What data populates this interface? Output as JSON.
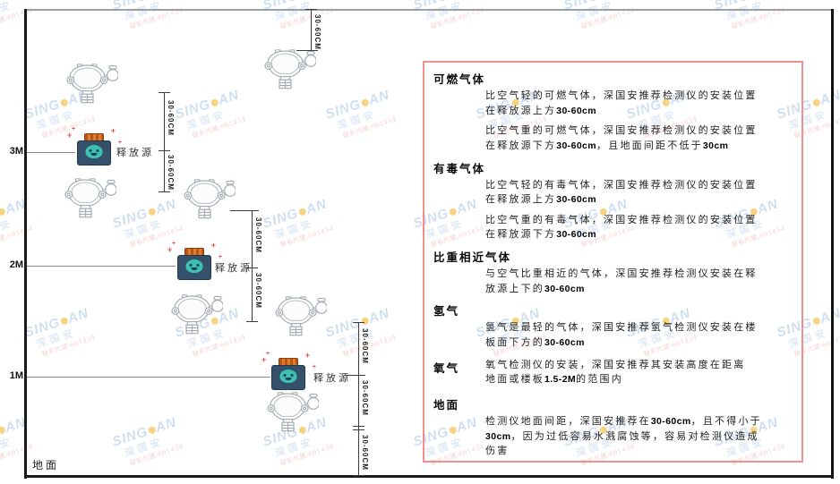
{
  "watermark": {
    "brand_left": "SING",
    "brand_right": "AN",
    "brand_cn": "深国安",
    "contact": "联系代理:661434"
  },
  "diagram": {
    "axis_labels": [
      "3M",
      "2M",
      "1M"
    ],
    "ground_label": "地面",
    "source_label": "释放源",
    "dim_label": "30-60CM"
  },
  "panel": {
    "sections": [
      {
        "title": "可燃气体",
        "inline": false,
        "paragraphs": [
          "比空气轻的可燃气体，深国安推荐检测仪的安装位置在释放源上方30-60cm",
          "比空气重的可燃气体，深国安推荐检测仪的安装位置在释放源下方30-60cm，且地面间距不低于30cm"
        ]
      },
      {
        "title": "有毒气体",
        "inline": false,
        "paragraphs": [
          "比空气轻的有毒气体，深国安推荐检测仪的安装位置在释放源上方30-60cm",
          "比空气重的有毒气体，深国安推荐检测仪的安装位置在释放源下方30-60cm"
        ]
      },
      {
        "title": "比重相近气体",
        "inline": false,
        "paragraphs": [
          "与空气比重相近的气体，深国安推荐检测仪安装在释放源上下的30-60cm"
        ]
      },
      {
        "title": "氢气",
        "inline": false,
        "paragraphs": [
          "氢气是最轻的气体，深国安推荐氢气检测仪安装在楼板面下方的30-60cm"
        ]
      },
      {
        "title": "氧气",
        "inline": true,
        "paragraphs": [
          "氧气检测仪的安装，深国安推荐其安装高度在距离地面或楼板1.5-2M的范围内"
        ]
      },
      {
        "title": "地面",
        "inline": false,
        "paragraphs": [
          "检测仪地面间距，深国安推荐在30-60cm，且不得小于30cm，因为过低容易水溅腐蚀等，容易对检测仪造成伤害"
        ]
      }
    ]
  },
  "colors": {
    "panel_border": "#f0908e",
    "source_body": "#35506b",
    "source_cap": "#d06a1f",
    "source_face": "#3cc0b0",
    "detector_stroke": "#a6adb5",
    "spark_red": "#e34f4f",
    "watermark_blue": "#a9c6e6",
    "watermark_dot_yellow": "#f2b11e",
    "watermark_red": "#edaaa6",
    "line_dark": "#1a1a1a"
  }
}
